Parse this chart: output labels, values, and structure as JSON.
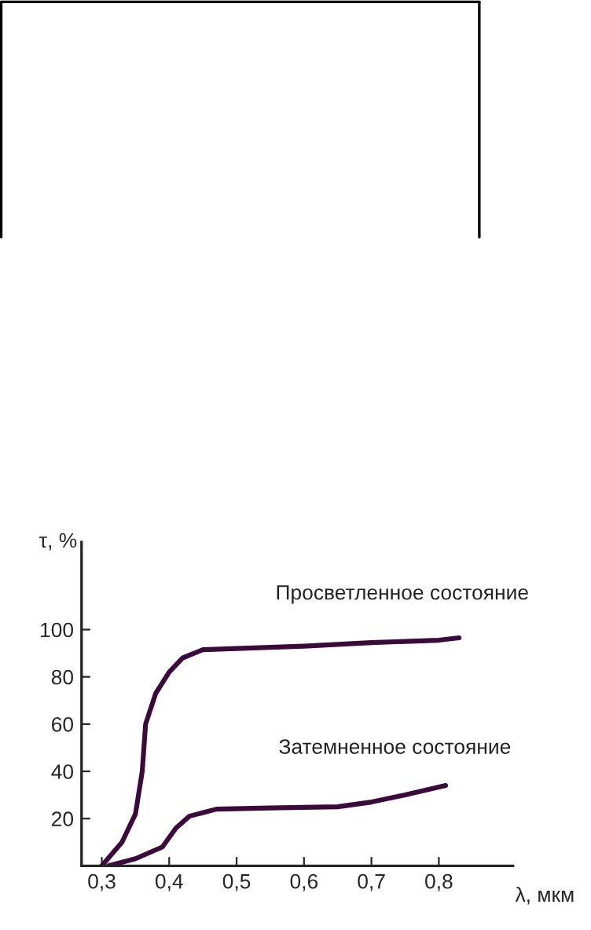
{
  "chart_data": {
    "type": "line",
    "xlabel": "λ, мкм",
    "ylabel": "τ, %",
    "xlim": [
      0.27,
      0.91
    ],
    "xticks": [
      {
        "value": 0.3,
        "label": "0,3"
      },
      {
        "value": 0.4,
        "label": "0,4"
      },
      {
        "value": 0.5,
        "label": "0,5"
      },
      {
        "value": 0.6,
        "label": "0,6"
      },
      {
        "value": 0.7,
        "label": "0,7"
      },
      {
        "value": 0.8,
        "label": "0,8"
      }
    ],
    "ylim": [
      0,
      137
    ],
    "yticks": [
      20,
      40,
      60,
      80,
      100
    ],
    "grid": false,
    "legend": false,
    "marker": "none",
    "line_style": "solid",
    "series": [
      {
        "name": "Просветленное состояние",
        "color": "#3a0a3a",
        "x": [
          0.3,
          0.33,
          0.35,
          0.36,
          0.365,
          0.38,
          0.4,
          0.42,
          0.45,
          0.5,
          0.6,
          0.7,
          0.8,
          0.83
        ],
        "values": [
          0,
          10,
          22,
          40,
          60,
          73,
          82,
          88,
          91.5,
          92,
          93,
          94.5,
          95.5,
          96.5
        ]
      },
      {
        "name": "Затемненное состояние",
        "color": "#3a0a3a",
        "x": [
          0.31,
          0.35,
          0.39,
          0.41,
          0.43,
          0.47,
          0.55,
          0.65,
          0.7,
          0.75,
          0.81
        ],
        "values": [
          0,
          3,
          8,
          16,
          21,
          24,
          24.5,
          25,
          27,
          30,
          34
        ]
      }
    ]
  }
}
